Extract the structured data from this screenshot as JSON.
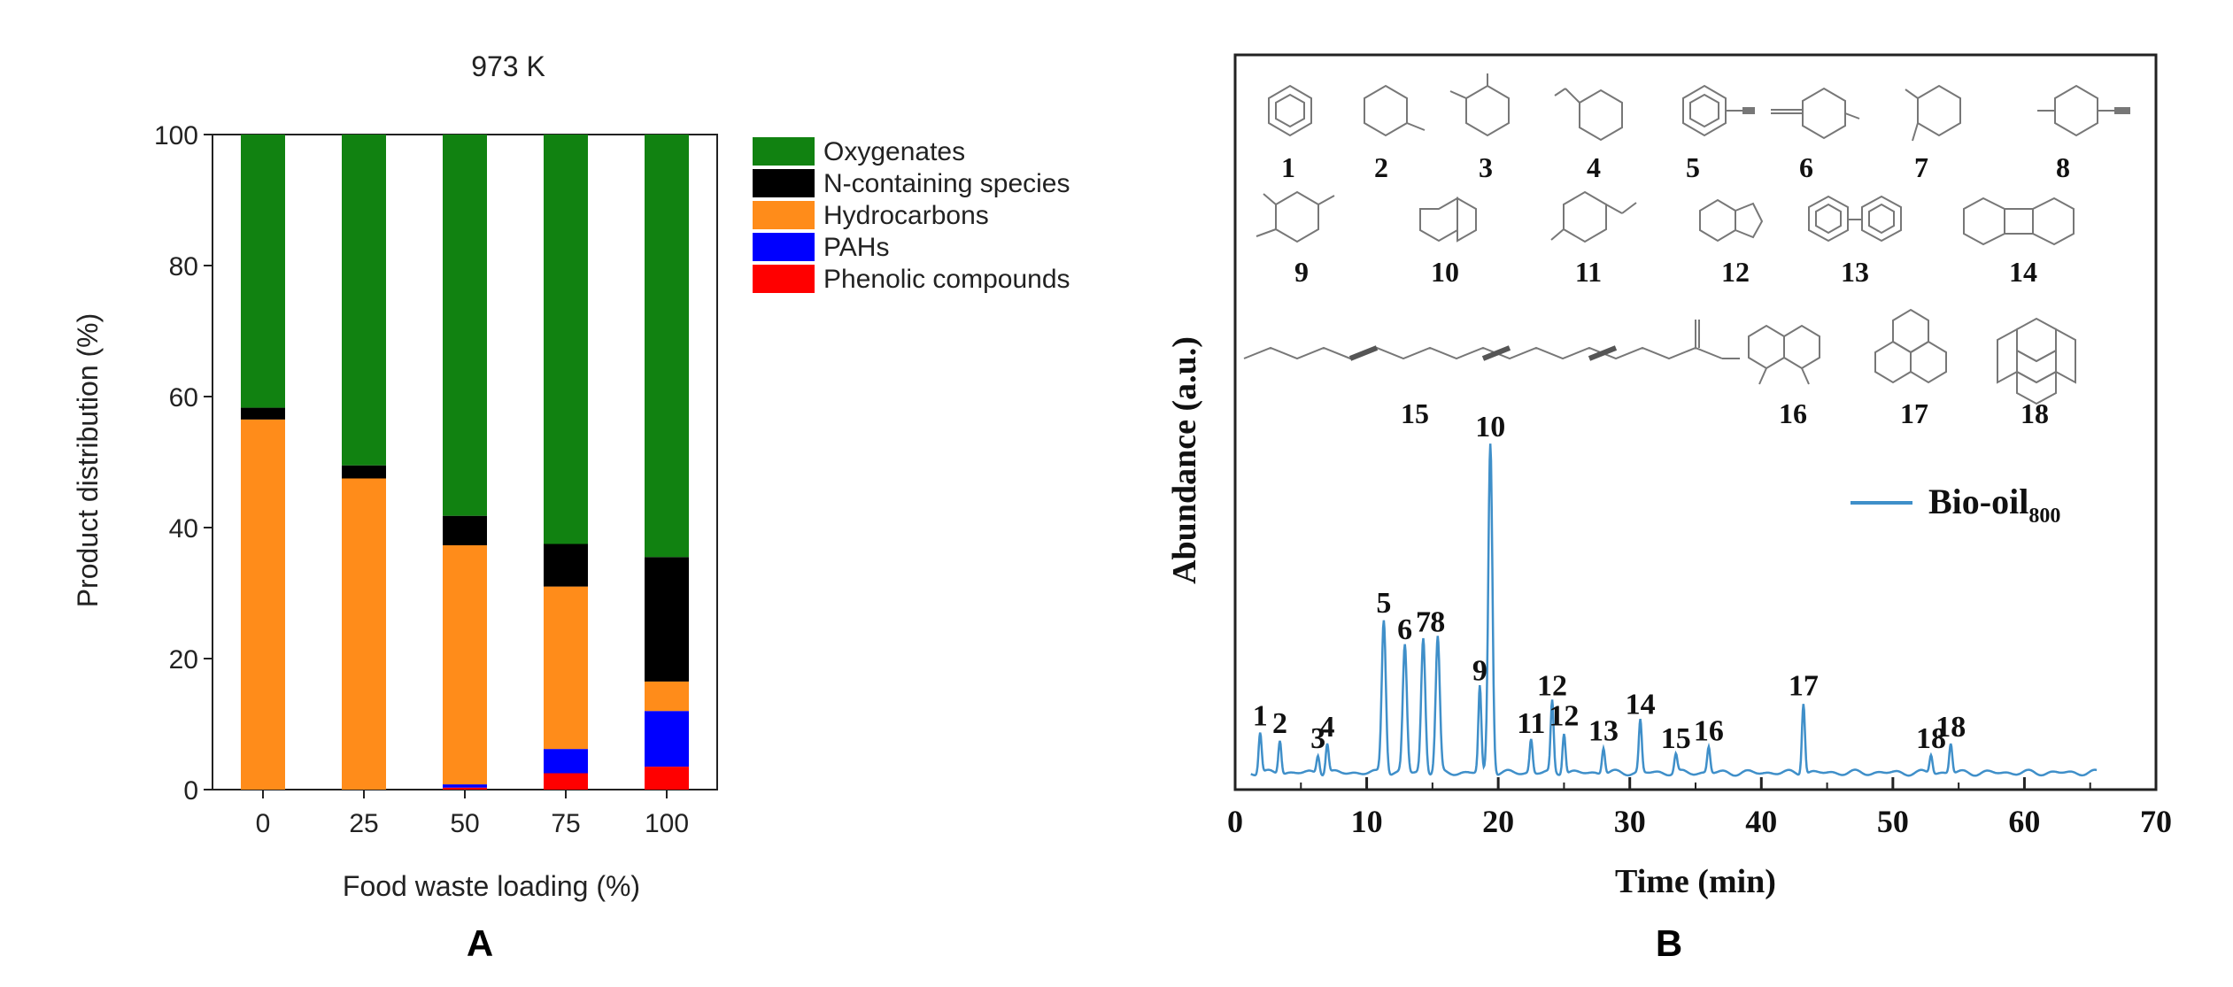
{
  "panel_a": {
    "panel_label": "A",
    "chart_data": {
      "type": "bar",
      "stacked": true,
      "title": "973 K",
      "xlabel": "Food waste loading (%)",
      "ylabel": "Product distribution (%)",
      "categories": [
        "0",
        "25",
        "50",
        "75",
        "100"
      ],
      "ylim": [
        0,
        100
      ],
      "yticks": [
        "0",
        "20",
        "40",
        "60",
        "80",
        "100"
      ],
      "legend_position": "right",
      "series": [
        {
          "name": "Phenolic compounds",
          "color": "#ff0000",
          "values": [
            0,
            0,
            0.3,
            2.5,
            3.5
          ]
        },
        {
          "name": "PAHs",
          "color": "#0000ff",
          "values": [
            0,
            0,
            0.5,
            3.7,
            8.5
          ]
        },
        {
          "name": "Hydrocarbons",
          "color": "#ff8c1a",
          "values": [
            56.5,
            47.5,
            36.5,
            24.8,
            4.5
          ]
        },
        {
          "name": "N-containing species",
          "color": "#000000",
          "values": [
            1.8,
            2.0,
            4.5,
            6.5,
            19.0
          ]
        },
        {
          "name": "Oxygenates",
          "color": "#118211",
          "values": [
            41.7,
            50.5,
            58.2,
            62.5,
            64.5
          ]
        }
      ],
      "legend_order": [
        "Oxygenates",
        "N-containing species",
        "Hydrocarbons",
        "PAHs",
        "Phenolic compounds"
      ]
    }
  },
  "panel_b": {
    "panel_label": "B",
    "chart_data": {
      "type": "line",
      "xlabel": "Time (min)",
      "ylabel": "Abundance (a.u.)",
      "xlim": [
        0,
        70
      ],
      "xticks": [
        "0",
        "10",
        "20",
        "30",
        "40",
        "50",
        "60",
        "70"
      ],
      "ylim": [
        0,
        1
      ],
      "legend_position": "right",
      "series": [
        {
          "name_main": "Bio-oil",
          "name_sub": "800",
          "color": "#3f8fc9"
        }
      ],
      "peaks": [
        {
          "label": "1",
          "x": 1.9,
          "y": 0.055
        },
        {
          "label": "2",
          "x": 3.4,
          "y": 0.045
        },
        {
          "label": "3",
          "x": 6.3,
          "y": 0.025
        },
        {
          "label": "4",
          "x": 7.0,
          "y": 0.04
        },
        {
          "label": "5",
          "x": 11.3,
          "y": 0.205
        },
        {
          "label": "6",
          "x": 12.9,
          "y": 0.17
        },
        {
          "label": "7",
          "x": 14.3,
          "y": 0.18
        },
        {
          "label": "8",
          "x": 15.4,
          "y": 0.18
        },
        {
          "label": "9",
          "x": 18.6,
          "y": 0.115
        },
        {
          "label": "10",
          "x": 19.4,
          "y": 0.44
        },
        {
          "label": "11",
          "x": 22.5,
          "y": 0.045
        },
        {
          "label": "12",
          "x": 24.1,
          "y": 0.095
        },
        {
          "label": "12",
          "x": 25.0,
          "y": 0.055
        },
        {
          "label": "13",
          "x": 28.0,
          "y": 0.035
        },
        {
          "label": "14",
          "x": 30.8,
          "y": 0.07
        },
        {
          "label": "15",
          "x": 33.5,
          "y": 0.025
        },
        {
          "label": "16",
          "x": 36.0,
          "y": 0.035
        },
        {
          "label": "17",
          "x": 43.2,
          "y": 0.095
        },
        {
          "label": "18",
          "x": 52.9,
          "y": 0.025
        },
        {
          "label": "18",
          "x": 54.4,
          "y": 0.04
        }
      ]
    },
    "structures": [
      {
        "label": "1",
        "icon": "benzene-icon"
      },
      {
        "label": "2",
        "icon": "toluene-icon"
      },
      {
        "label": "3",
        "icon": "xylene-icon"
      },
      {
        "label": "4",
        "icon": "styrene-icon"
      },
      {
        "label": "5",
        "icon": "phenylamine-icon"
      },
      {
        "label": "6",
        "icon": "substituted-benzene-icon"
      },
      {
        "label": "7",
        "icon": "substituted-benzene-icon"
      },
      {
        "label": "8",
        "icon": "substituted-benzene-icon"
      },
      {
        "label": "9",
        "icon": "trisubstituted-benzene-icon"
      },
      {
        "label": "10",
        "icon": "naphthalene-icon"
      },
      {
        "label": "11",
        "icon": "substituted-benzene-icon"
      },
      {
        "label": "12",
        "icon": "indene-icon"
      },
      {
        "label": "13",
        "icon": "biphenyl-icon"
      },
      {
        "label": "14",
        "icon": "biphenylene-icon"
      },
      {
        "label": "15",
        "icon": "long-chain-acid-icon"
      },
      {
        "label": "16",
        "icon": "fluorene-icon"
      },
      {
        "label": "17",
        "icon": "phenanthrene-icon"
      },
      {
        "label": "18",
        "icon": "pyrene-icon"
      }
    ]
  }
}
